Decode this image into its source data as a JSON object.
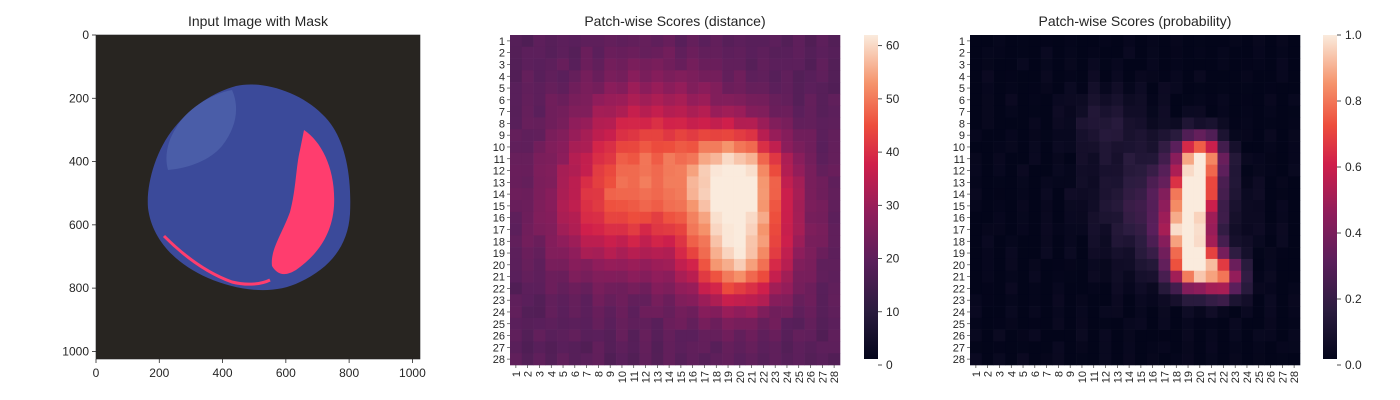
{
  "chart_data": [
    {
      "type": "image",
      "title": "Input Image with Mask",
      "xlim": [
        0,
        1024
      ],
      "ylim": [
        1024,
        0
      ],
      "x_ticks": [
        "0",
        "200",
        "400",
        "600",
        "800",
        "1000"
      ],
      "y_ticks": [
        "0",
        "200",
        "400",
        "600",
        "800",
        "1000"
      ],
      "mask_color": "#ff3d6e",
      "object_color": "#3b4a9a",
      "background_color": "#282521"
    },
    {
      "type": "heatmap",
      "title": "Patch-wise Scores (distance)",
      "grid_size": 28,
      "row_labels": [
        "1",
        "2",
        "3",
        "4",
        "5",
        "6",
        "7",
        "8",
        "9",
        "10",
        "11",
        "12",
        "13",
        "14",
        "15",
        "16",
        "17",
        "18",
        "19",
        "20",
        "21",
        "22",
        "23",
        "24",
        "25",
        "26",
        "27",
        "28"
      ],
      "col_labels": [
        "1",
        "2",
        "3",
        "4",
        "5",
        "6",
        "7",
        "8",
        "9",
        "10",
        "11",
        "12",
        "13",
        "14",
        "15",
        "16",
        "17",
        "18",
        "19",
        "20",
        "21",
        "22",
        "23",
        "24",
        "25",
        "26",
        "27",
        "28"
      ],
      "colorbar_range": [
        0,
        62
      ],
      "colorbar_ticks": [
        "0",
        "10",
        "20",
        "30",
        "40",
        "50",
        "60"
      ],
      "colormap": "rocket",
      "value_model": {
        "base": 18,
        "blobs": [
          {
            "row": 11,
            "col": 12,
            "amp": 22,
            "sigma": 4.5
          },
          {
            "row": 16,
            "col": 8,
            "amp": 12,
            "sigma": 3.5
          },
          {
            "row": 12,
            "col": 20,
            "amp": 26,
            "sigma": 2.6
          },
          {
            "row": 20,
            "col": 20,
            "amp": 24,
            "sigma": 2.6
          },
          {
            "row": 16,
            "col": 20,
            "amp": 20,
            "sigma": 3.2
          },
          {
            "row": 15,
            "col": 17,
            "amp": 10,
            "sigma": 5.5
          }
        ]
      }
    },
    {
      "type": "heatmap",
      "title": "Patch-wise Scores (probability)",
      "grid_size": 28,
      "row_labels": [
        "1",
        "2",
        "3",
        "4",
        "5",
        "6",
        "7",
        "8",
        "9",
        "10",
        "11",
        "12",
        "13",
        "14",
        "15",
        "16",
        "17",
        "18",
        "19",
        "20",
        "21",
        "22",
        "23",
        "24",
        "25",
        "26",
        "27",
        "28"
      ],
      "col_labels": [
        "1",
        "2",
        "3",
        "4",
        "5",
        "6",
        "7",
        "8",
        "9",
        "10",
        "11",
        "12",
        "13",
        "14",
        "15",
        "16",
        "17",
        "18",
        "19",
        "20",
        "21",
        "22",
        "23",
        "24",
        "25",
        "26",
        "27",
        "28"
      ],
      "colorbar_range": [
        0,
        1
      ],
      "colorbar_ticks": [
        "0.0",
        "0.2",
        "0.4",
        "0.6",
        "0.8",
        "1.0"
      ],
      "colormap": "rocket",
      "value_model": {
        "base": 0.0,
        "blobs": [
          {
            "row": 11,
            "col": 20,
            "amp": 0.95,
            "sigma": 1.3
          },
          {
            "row": 14,
            "col": 19.5,
            "amp": 0.95,
            "sigma": 1.3
          },
          {
            "row": 17,
            "col": 19,
            "amp": 0.9,
            "sigma": 1.3
          },
          {
            "row": 20,
            "col": 19.5,
            "amp": 1.0,
            "sigma": 1.4
          },
          {
            "row": 21,
            "col": 22,
            "amp": 0.6,
            "sigma": 1.2
          },
          {
            "row": 15,
            "col": 17,
            "amp": 0.25,
            "sigma": 3.5
          },
          {
            "row": 8,
            "col": 12,
            "amp": 0.12,
            "sigma": 2.0
          }
        ]
      }
    }
  ]
}
